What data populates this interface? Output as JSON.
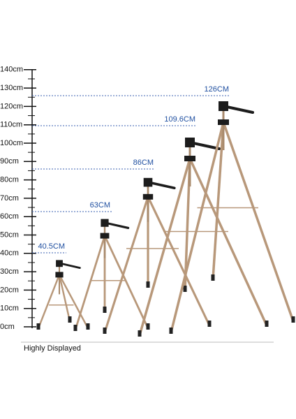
{
  "ruler": {
    "labels": [
      "0cm",
      "10cm",
      "20cm",
      "30cm",
      "40cm",
      "50cm",
      "60cm",
      "70cm",
      "80cm",
      "90cm",
      "100cm",
      "110cm",
      "120cm",
      "130cm",
      "140cm"
    ]
  },
  "heights": [
    "40.5CM",
    "63CM",
    "86CM",
    "109.6CM",
    "126CM"
  ],
  "caption": "Highly Displayed"
}
